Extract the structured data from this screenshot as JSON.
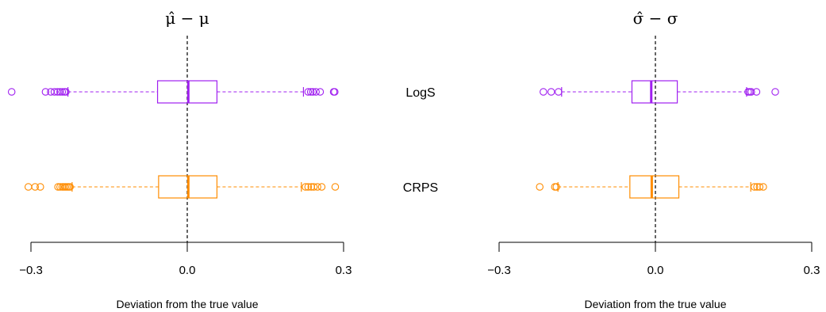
{
  "chart_data": {
    "type": "boxplot",
    "panels": [
      {
        "title": "μ̂ − μ",
        "xlabel": "Deviation from the true value",
        "xlim": [
          -0.3,
          0.3
        ],
        "ticks": [
          -0.3,
          0.0,
          0.3
        ],
        "tick_labels": [
          "−0.3",
          "0.0",
          "0.3"
        ],
        "reference_line": 0.0,
        "boxes": [
          {
            "name": "LogS",
            "color": "#A020F0",
            "q1": -0.057,
            "median": 0.002,
            "q3": 0.057,
            "whisker_low": -0.229,
            "whisker_high": 0.223,
            "outliers": [
              -0.337,
              -0.272,
              -0.262,
              -0.255,
              -0.249,
              -0.244,
              -0.24,
              -0.236,
              -0.233,
              0.232,
              0.237,
              0.241,
              0.247,
              0.255,
              0.281,
              0.283
            ]
          },
          {
            "name": "CRPS",
            "color": "#FF8C00",
            "q1": -0.055,
            "median": 0.002,
            "q3": 0.057,
            "whisker_low": -0.221,
            "whisker_high": 0.219,
            "outliers": [
              -0.305,
              -0.292,
              -0.282,
              -0.248,
              -0.244,
              -0.24,
              -0.237,
              -0.234,
              -0.231,
              -0.228,
              -0.225,
              0.227,
              0.232,
              0.238,
              0.243,
              0.25,
              0.258,
              0.284
            ]
          }
        ]
      },
      {
        "title": "σ̂ − σ",
        "xlabel": "Deviation from the true value",
        "xlim": [
          -0.3,
          0.3
        ],
        "ticks": [
          -0.3,
          0.0,
          0.3
        ],
        "tick_labels": [
          "−0.3",
          "0.0",
          "0.3"
        ],
        "reference_line": 0.0,
        "boxes": [
          {
            "name": "LogS",
            "color": "#A020F0",
            "q1": -0.045,
            "median": -0.008,
            "q3": 0.042,
            "whisker_low": -0.18,
            "whisker_high": 0.175,
            "outliers": [
              -0.215,
              -0.2,
              -0.186,
              0.178,
              0.181,
              0.184,
              0.194,
              0.23
            ]
          },
          {
            "name": "CRPS",
            "color": "#FF8C00",
            "q1": -0.049,
            "median": -0.007,
            "q3": 0.045,
            "whisker_low": -0.187,
            "whisker_high": 0.183,
            "outliers": [
              -0.222,
              -0.193,
              -0.19,
              0.19,
              0.195,
              0.2,
              0.207
            ]
          }
        ]
      }
    ]
  }
}
